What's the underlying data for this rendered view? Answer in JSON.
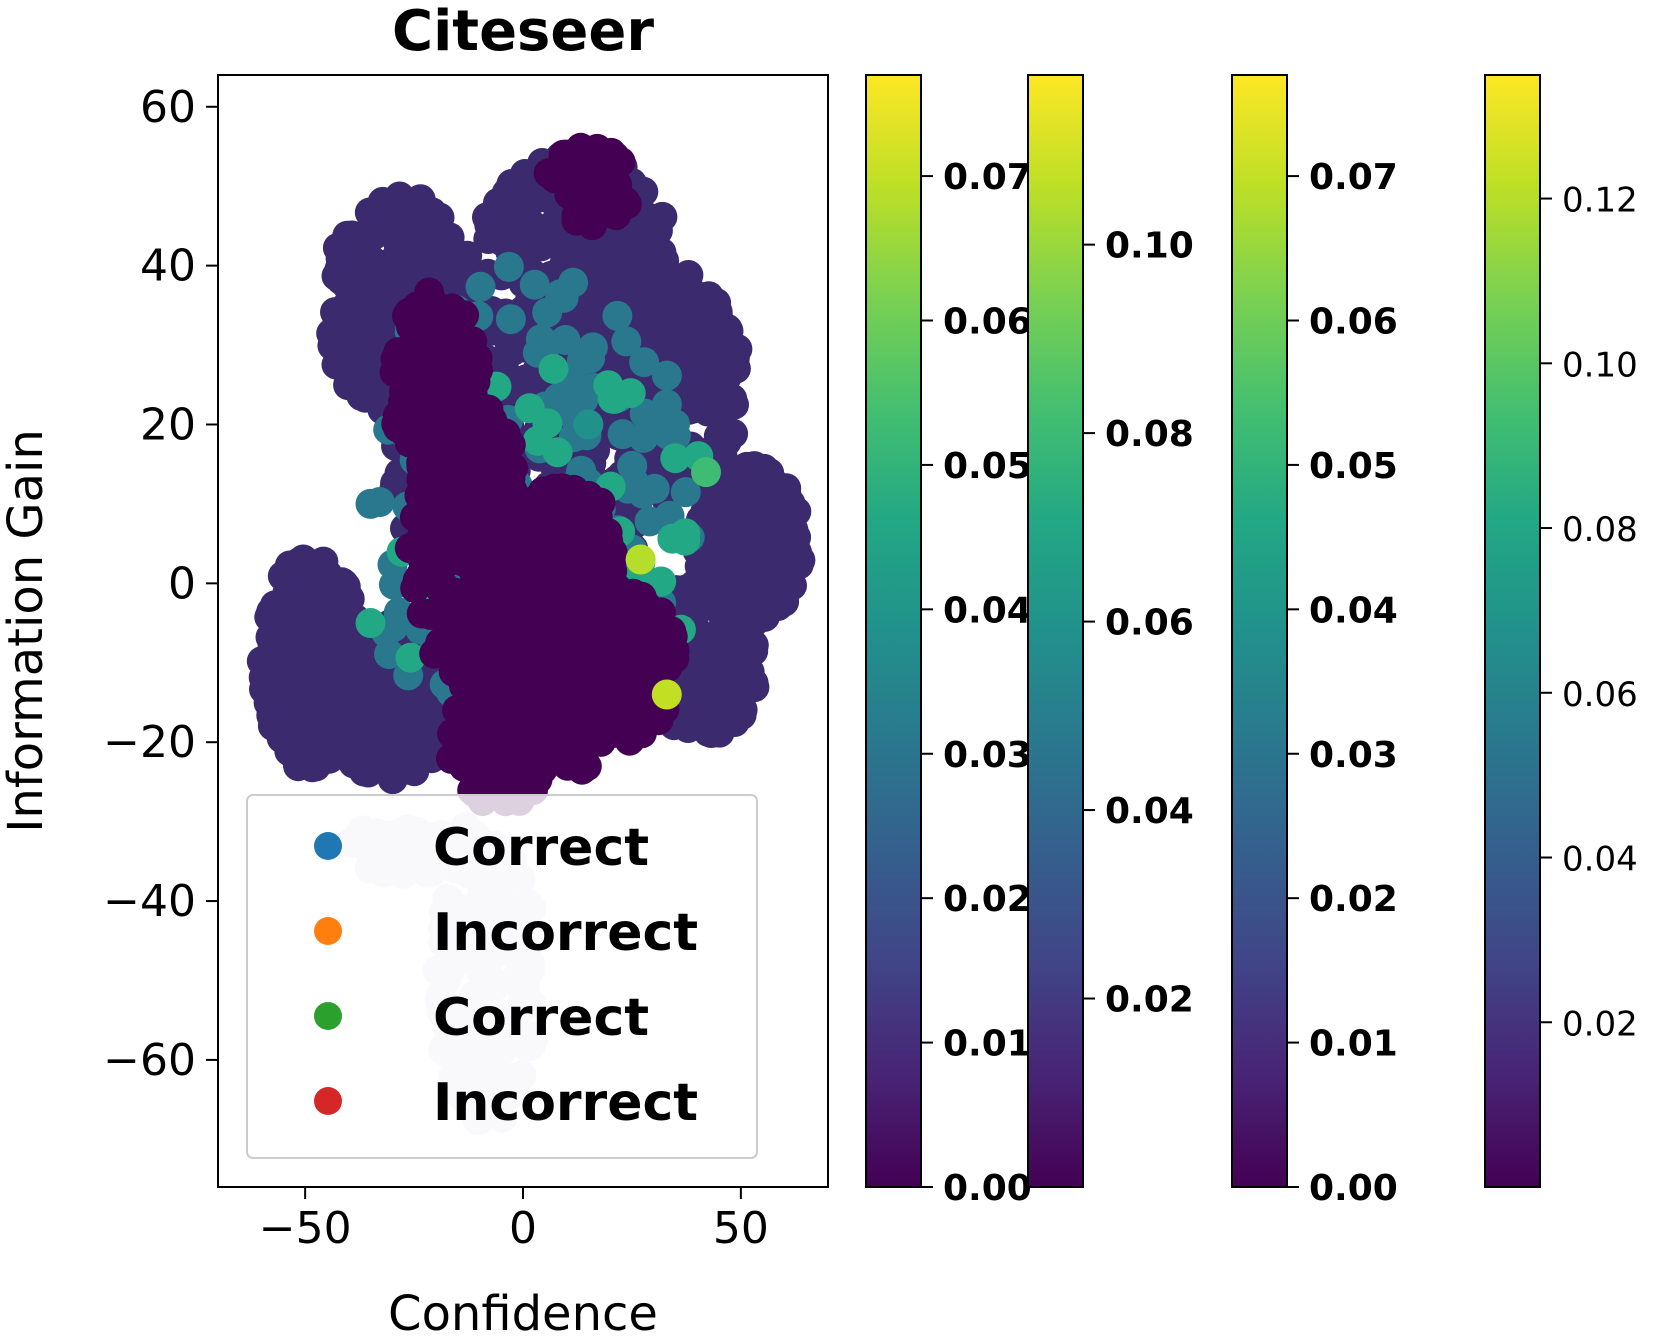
{
  "chart_data": {
    "type": "scatter",
    "title": "Citeseer",
    "xlabel": "Confidence",
    "ylabel": "Information Gain",
    "xlim": [
      -70,
      70
    ],
    "ylim": [
      -76,
      64
    ],
    "xticks": [
      -50,
      0,
      50
    ],
    "xtick_labels": [
      "−50",
      "0",
      "50"
    ],
    "yticks": [
      60,
      40,
      20,
      0,
      -20,
      -40,
      -60
    ],
    "ytick_labels": [
      "60",
      "40",
      "20",
      "0",
      "−20",
      "−40",
      "−60"
    ],
    "grid": false,
    "colormap": "viridis",
    "legend": {
      "placement": "lower-left",
      "entries": [
        {
          "label": "Correct",
          "color": "#1f77b4"
        },
        {
          "label": "Incorrect",
          "color": "#ff7f0e"
        },
        {
          "label": "Correct",
          "color": "#2ca02c"
        },
        {
          "label": "Incorrect",
          "color": "#d62728"
        }
      ]
    },
    "colorbars": [
      {
        "min": 0.0,
        "max": 0.077,
        "bold": true,
        "ticks": [
          0.0,
          0.01,
          0.02,
          0.03,
          0.04,
          0.05,
          0.06,
          0.07
        ],
        "tick_labels": [
          "0.00",
          "0.01",
          "0.02",
          "0.03",
          "0.04",
          "0.05",
          "0.06",
          "0.07"
        ]
      },
      {
        "min": 0.0,
        "max": 0.118,
        "bold": true,
        "ticks": [
          0.02,
          0.04,
          0.06,
          0.08,
          0.1
        ],
        "tick_labels": [
          "0.02",
          "0.04",
          "0.06",
          "0.08",
          "0.10"
        ]
      },
      {
        "min": 0.0,
        "max": 0.077,
        "bold": true,
        "ticks": [
          0.0,
          0.01,
          0.02,
          0.03,
          0.04,
          0.05,
          0.06,
          0.07
        ],
        "tick_labels": [
          "0.00",
          "0.01",
          "0.02",
          "0.03",
          "0.04",
          "0.05",
          "0.06",
          "0.07"
        ]
      },
      {
        "min": 0.0,
        "max": 0.135,
        "bold": false,
        "ticks": [
          0.02,
          0.04,
          0.06,
          0.08,
          0.1,
          0.12
        ],
        "tick_labels": [
          "0.02",
          "0.04",
          "0.06",
          "0.08",
          "0.10",
          "0.12"
        ]
      }
    ],
    "point_groups": [
      {
        "role": "background",
        "color": "#3b2a6e",
        "cx": -48,
        "cy": -10,
        "rx": 12,
        "ry": 14,
        "count": 220
      },
      {
        "role": "background",
        "color": "#3b2a6e",
        "cx": -28,
        "cy": 35,
        "rx": 18,
        "ry": 14,
        "count": 200
      },
      {
        "role": "background",
        "color": "#3b2a6e",
        "cx": 12,
        "cy": 42,
        "rx": 22,
        "ry": 12,
        "count": 220
      },
      {
        "role": "background",
        "color": "#3b2a6e",
        "cx": 35,
        "cy": 25,
        "rx": 15,
        "ry": 15,
        "count": 180
      },
      {
        "role": "background",
        "color": "#3b2a6e",
        "cx": 52,
        "cy": 5,
        "rx": 12,
        "ry": 10,
        "count": 180
      },
      {
        "role": "background",
        "color": "#3b2a6e",
        "cx": 40,
        "cy": -10,
        "rx": 14,
        "ry": 10,
        "count": 160
      },
      {
        "role": "background",
        "color": "#3b2a6e",
        "cx": -30,
        "cy": -15,
        "rx": 14,
        "ry": 10,
        "count": 180
      },
      {
        "role": "background",
        "color": "#3b2a6e",
        "cx": 0,
        "cy": 15,
        "rx": 30,
        "ry": 20,
        "count": 300
      },
      {
        "role": "teal",
        "color": "#2a788e",
        "cx": 0,
        "cy": 10,
        "rx": 40,
        "ry": 30,
        "count": 160
      },
      {
        "role": "teal",
        "color": "#22a884",
        "cx": 5,
        "cy": 5,
        "rx": 40,
        "ry": 25,
        "count": 40
      },
      {
        "role": "dense",
        "color": "#440154",
        "cx": -12,
        "cy": 5,
        "rx": 14,
        "ry": 18,
        "count": 240
      },
      {
        "role": "dense",
        "color": "#440154",
        "cx": 10,
        "cy": -5,
        "rx": 12,
        "ry": 20,
        "count": 220
      },
      {
        "role": "dense",
        "color": "#440154",
        "cx": 25,
        "cy": -10,
        "rx": 10,
        "ry": 10,
        "count": 120
      },
      {
        "role": "dense",
        "color": "#440154",
        "cx": -5,
        "cy": -20,
        "rx": 12,
        "ry": 8,
        "count": 120
      },
      {
        "role": "dense",
        "color": "#440154",
        "cx": -20,
        "cy": 25,
        "rx": 10,
        "ry": 12,
        "count": 100
      },
      {
        "role": "dense",
        "color": "#440154",
        "cx": 15,
        "cy": 50,
        "rx": 10,
        "ry": 5,
        "count": 60
      },
      {
        "role": "faded",
        "color": "#dcd6e8",
        "cx": -8,
        "cy": -50,
        "rx": 12,
        "ry": 18,
        "count": 140
      },
      {
        "role": "faded",
        "color": "#dcd6e8",
        "cx": -25,
        "cy": -33,
        "rx": 15,
        "ry": 4,
        "count": 50
      }
    ],
    "highlight_points": [
      {
        "x": 27,
        "y": 3,
        "color": "#b5de2b"
      },
      {
        "x": 33,
        "y": -14,
        "color": "#c2df23"
      },
      {
        "x": 42,
        "y": 14,
        "color": "#3fbc73"
      },
      {
        "x": -35,
        "y": 10,
        "color": "#2a788e"
      },
      {
        "x": 7,
        "y": 27,
        "color": "#22a884"
      },
      {
        "x": -35,
        "y": -5,
        "color": "#22a884"
      },
      {
        "x": 15,
        "y": 20,
        "color": "#21918c"
      }
    ]
  }
}
